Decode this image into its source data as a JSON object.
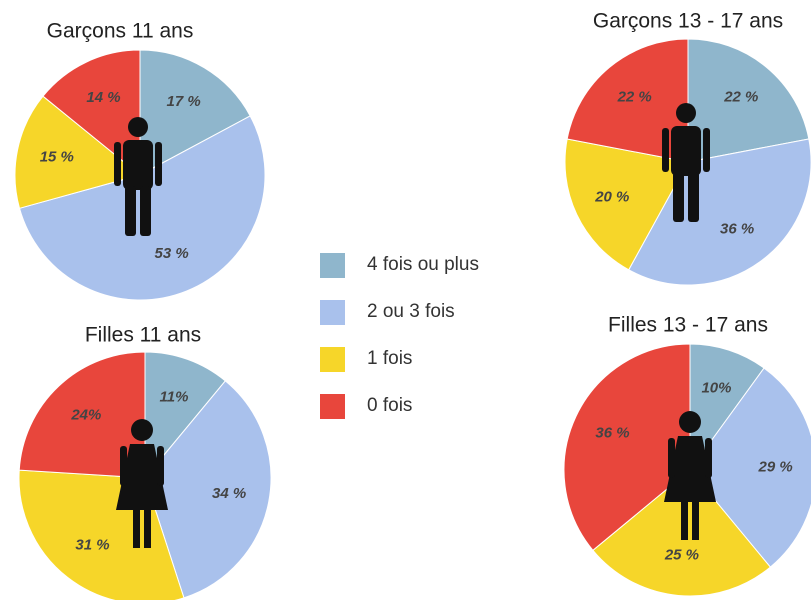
{
  "chart_data": [
    {
      "type": "pie",
      "title": "Garçons 11 ans",
      "values": [
        17,
        53,
        15,
        14
      ],
      "value_labels": [
        "17 %",
        "53 %",
        "15 %",
        "14 %"
      ]
    },
    {
      "type": "pie",
      "title": "Filles 11 ans",
      "values": [
        11,
        34,
        31,
        24
      ],
      "value_labels": [
        "11%",
        "34 %",
        "31 %",
        "24%"
      ]
    },
    {
      "type": "pie",
      "title": "Garçons  13 - 17 ans",
      "values": [
        22,
        36,
        20,
        22
      ],
      "value_labels": [
        "22 %",
        "36 %",
        "20 %",
        "22 %"
      ]
    },
    {
      "type": "pie",
      "title": "Filles 13 - 17 ans",
      "values": [
        10,
        29,
        25,
        36
      ],
      "value_labels": [
        "10%",
        "29 %",
        "25 %",
        "36 %"
      ]
    }
  ],
  "legend": {
    "labels": [
      "4 fois ou plus",
      "2 ou 3 fois",
      "1 fois",
      "0 fois"
    ],
    "colors": [
      "#8fb6cc",
      "#a9c1ec",
      "#f6d629",
      "#e8463c"
    ]
  }
}
